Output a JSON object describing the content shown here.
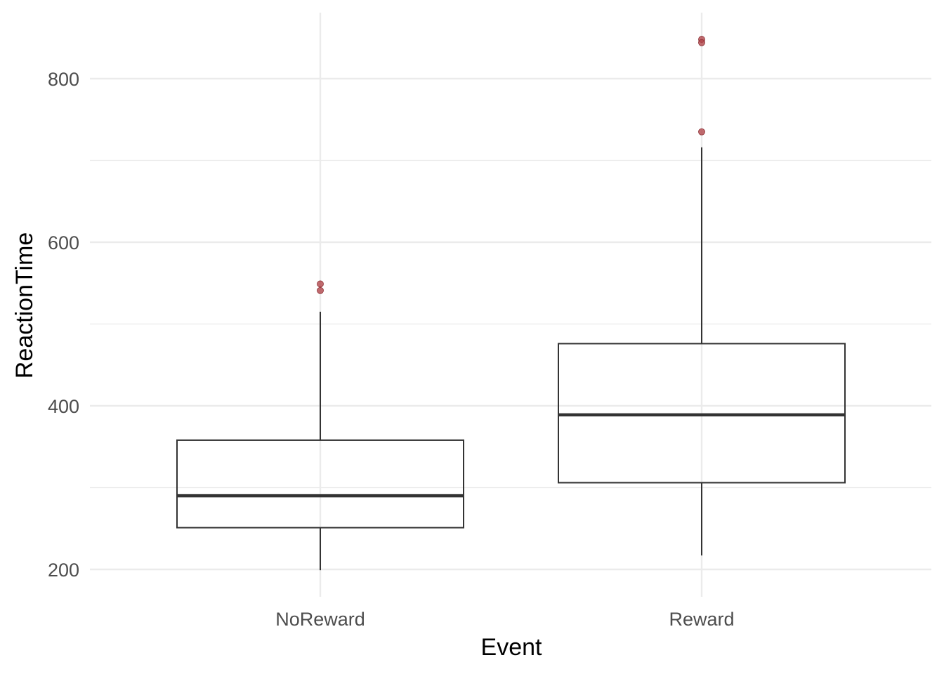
{
  "chart_data": {
    "type": "boxplot",
    "title": "",
    "xlabel": "Event",
    "ylabel": "ReactionTime",
    "categories": [
      "NoReward",
      "Reward"
    ],
    "ylim": [
      120,
      880
    ],
    "yticks": [
      200,
      400,
      600,
      800
    ],
    "ytick_labels": [
      "200",
      "400",
      "600",
      "800"
    ],
    "grid": true,
    "legend": "none",
    "boxes": [
      {
        "category": "NoReward",
        "whisker_low": 199,
        "q1": 251,
        "median": 290,
        "q3": 358,
        "whisker_high": 515,
        "outliers": [
          549,
          541
        ]
      },
      {
        "category": "Reward",
        "whisker_low": 217,
        "q1": 306,
        "median": 389,
        "q3": 476,
        "whisker_high": 716,
        "outliers": [
          848,
          844,
          735
        ]
      }
    ],
    "colors": {
      "grid": "#ebebeb",
      "box": "#333333",
      "outlier": "#b2464b"
    }
  }
}
